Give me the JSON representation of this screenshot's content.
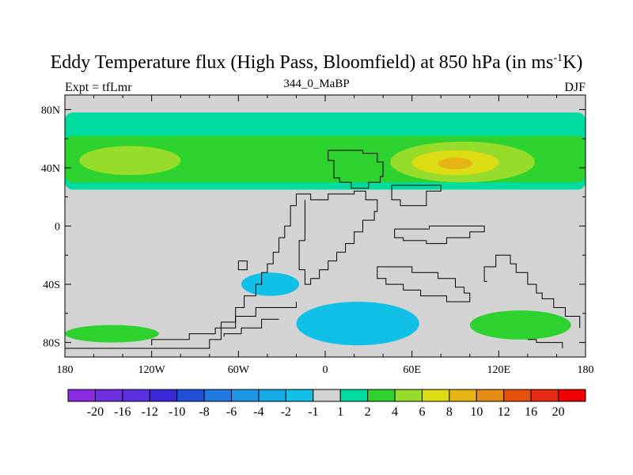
{
  "title": {
    "main": "Eddy Temperature flux (High Pass, Bloomfield) at 850 hPa (in ms",
    "superscript": "-1",
    "tail": "K)"
  },
  "subtitle": "344_0_MaBP",
  "left_string": "Expt = tfLmr",
  "right_string": "DJF",
  "chart_data": {
    "type": "heatmap",
    "projection": "cylindrical-equidistant",
    "xlim": [
      -180,
      180
    ],
    "ylim": [
      -90,
      90
    ],
    "x_ticks": [
      {
        "value": -180,
        "label": "180"
      },
      {
        "value": -120,
        "label": "120W"
      },
      {
        "value": -60,
        "label": "60W"
      },
      {
        "value": 0,
        "label": "0"
      },
      {
        "value": 60,
        "label": "60E"
      },
      {
        "value": 120,
        "label": "120E"
      },
      {
        "value": 180,
        "label": "180"
      }
    ],
    "y_ticks": [
      {
        "value": 80,
        "label": "80N"
      },
      {
        "value": 40,
        "label": "40N"
      },
      {
        "value": 0,
        "label": "0"
      },
      {
        "value": -40,
        "label": "40S"
      },
      {
        "value": -80,
        "label": "80S"
      }
    ],
    "missing_color": "#d3d3d3",
    "colorbar": {
      "labels": [
        "-20",
        "-16",
        "-12",
        "-10",
        "-8",
        "-6",
        "-4",
        "-2",
        "-1",
        "1",
        "2",
        "4",
        "6",
        "8",
        "10",
        "12",
        "16",
        "20"
      ],
      "colors": [
        "#8a2be2",
        "#6e2ee0",
        "#5a30e0",
        "#3a28d8",
        "#1e50d8",
        "#1e78e0",
        "#1e96e6",
        "#14aae6",
        "#10c0e6",
        "#d3d3d3",
        "#00dca0",
        "#2ed22e",
        "#96dc2a",
        "#dcdc14",
        "#e6b414",
        "#e68c14",
        "#e6500a",
        "#e62814",
        "#f00000"
      ]
    },
    "field_regions": [
      {
        "level": "1 to 2",
        "color": "#00dca0",
        "lon": [
          -180,
          180
        ],
        "lat": [
          25,
          78
        ],
        "note": "NH mid-latitude storm track band"
      },
      {
        "level": "2 to 4",
        "color": "#2ed22e",
        "lon": [
          -180,
          180
        ],
        "lat": [
          30,
          62
        ],
        "note": "NH core band"
      },
      {
        "level": "4 to 6",
        "color": "#96dc2a",
        "lon": [
          -170,
          -100
        ],
        "lat": [
          35,
          55
        ],
        "note": "NH western maximum"
      },
      {
        "level": "4 to 6",
        "color": "#96dc2a",
        "lon": [
          45,
          145
        ],
        "lat": [
          30,
          58
        ],
        "note": "NH eastern maximum"
      },
      {
        "level": "6 to 8",
        "color": "#dcdc14",
        "lon": [
          60,
          120
        ],
        "lat": [
          35,
          52
        ],
        "note": "NH peak"
      },
      {
        "level": "8 to 10",
        "color": "#e6b414",
        "lon": [
          78,
          102
        ],
        "lat": [
          39,
          47
        ],
        "note": "NH peak core"
      },
      {
        "level": "-1 to -4",
        "color": "#10c0e6",
        "lon": [
          -20,
          65
        ],
        "lat": [
          -82,
          -52
        ],
        "note": "SH negative region"
      },
      {
        "level": "-1 to -2",
        "color": "#10c0e6",
        "lon": [
          -58,
          -18
        ],
        "lat": [
          -48,
          -32
        ],
        "note": "SH negative region"
      },
      {
        "level": "1 to 4",
        "color": "#2ed22e",
        "lon": [
          100,
          170
        ],
        "lat": [
          -78,
          -58
        ],
        "note": "SH positive region"
      },
      {
        "level": "1 to 4",
        "color": "#2ed22e",
        "lon": [
          -180,
          -115
        ],
        "lat": [
          -80,
          -68
        ],
        "note": "SH positive region"
      }
    ]
  }
}
